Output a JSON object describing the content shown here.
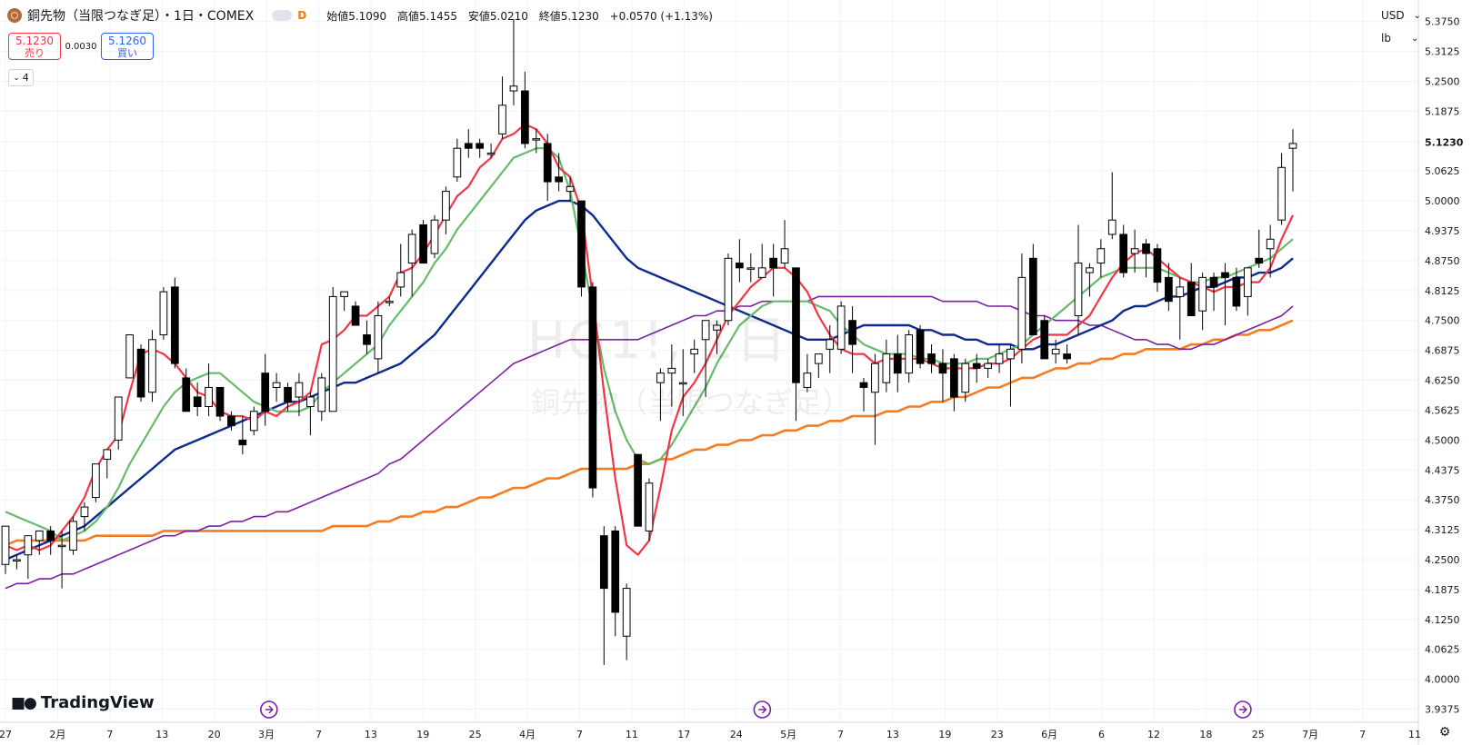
{
  "header": {
    "symbol_title": "銅先物（当限つなぎ足）・1日・COMEX",
    "interval_badge": "D",
    "ohlc": {
      "open_label": "始値",
      "open": "5.1090",
      "high_label": "高値",
      "high": "5.1455",
      "low_label": "安値",
      "low": "5.0210",
      "close_label": "終値",
      "close": "5.1230",
      "change": "+0.0570 (+1.13%)"
    }
  },
  "trade": {
    "sell_price": "5.1230",
    "sell_label": "売り",
    "spread": "0.0030",
    "buy_price": "5.1260",
    "buy_label": "買い"
  },
  "indicators_count": "4",
  "axis_controls": {
    "currency": "USD",
    "unit": "lb"
  },
  "watermark": {
    "symbol": "HG1!, 1日",
    "name": "銅先物（当限つなぎ足）"
  },
  "branding": "TradingView",
  "colors": {
    "up_fill": "#ffffff",
    "down_fill": "#000000",
    "ma5": "#f23645",
    "ma10": "#66bb6a",
    "ma25": "#0d2a8c",
    "ma50": "#7b1fa2",
    "ma100": "#f57c20",
    "grid": "#f0f3fa",
    "price_badge": "#131722"
  },
  "chart_data": {
    "type": "candlestick",
    "y_ticks": [
      "5.3750",
      "5.3125",
      "5.2500",
      "5.1875",
      "5.1230",
      "5.0625",
      "5.0000",
      "4.9375",
      "4.8750",
      "4.8125",
      "4.7500",
      "4.6875",
      "4.6250",
      "4.5625",
      "4.5000",
      "4.4375",
      "4.3750",
      "4.3125",
      "4.2500",
      "4.1875",
      "4.1250",
      "4.0625",
      "4.0000",
      "3.9375"
    ],
    "ylim": [
      3.91,
      5.42
    ],
    "current_price": "5.1230",
    "x_ticks": [
      "27",
      "2月",
      "7",
      "13",
      "20",
      "3月",
      "7",
      "13",
      "19",
      "25",
      "4月",
      "7",
      "11",
      "17",
      "24",
      "5月",
      "7",
      "13",
      "19",
      "23",
      "6月",
      "6",
      "12",
      "18",
      "25",
      "7月",
      "7",
      "11"
    ],
    "candles": [
      [
        4.24,
        4.32,
        4.22,
        4.32
      ],
      [
        4.25,
        4.26,
        4.23,
        4.25
      ],
      [
        4.26,
        4.3,
        4.21,
        4.3
      ],
      [
        4.29,
        4.31,
        4.26,
        4.31
      ],
      [
        4.31,
        4.32,
        4.26,
        4.29
      ],
      [
        4.28,
        4.31,
        4.19,
        4.28
      ],
      [
        4.27,
        4.34,
        4.26,
        4.33
      ],
      [
        4.34,
        4.37,
        4.31,
        4.36
      ],
      [
        4.38,
        4.45,
        4.37,
        4.45
      ],
      [
        4.46,
        4.48,
        4.42,
        4.48
      ],
      [
        4.5,
        4.59,
        4.48,
        4.59
      ],
      [
        4.63,
        4.72,
        4.63,
        4.72
      ],
      [
        4.69,
        4.7,
        4.58,
        4.59
      ],
      [
        4.6,
        4.73,
        4.58,
        4.71
      ],
      [
        4.72,
        4.82,
        4.71,
        4.81
      ],
      [
        4.82,
        4.84,
        4.65,
        4.66
      ],
      [
        4.63,
        4.65,
        4.56,
        4.56
      ],
      [
        4.59,
        4.62,
        4.55,
        4.57
      ],
      [
        4.57,
        4.66,
        4.55,
        4.61
      ],
      [
        4.61,
        4.61,
        4.54,
        4.55
      ],
      [
        4.55,
        4.56,
        4.52,
        4.53
      ],
      [
        4.5,
        4.55,
        4.47,
        4.49
      ],
      [
        4.52,
        4.57,
        4.51,
        4.56
      ],
      [
        4.64,
        4.68,
        4.53,
        4.56
      ],
      [
        4.61,
        4.64,
        4.58,
        4.62
      ],
      [
        4.61,
        4.62,
        4.56,
        4.58
      ],
      [
        4.59,
        4.64,
        4.55,
        4.62
      ],
      [
        4.57,
        4.6,
        4.51,
        4.59
      ],
      [
        4.56,
        4.64,
        4.54,
        4.63
      ],
      [
        4.56,
        4.82,
        4.56,
        4.8
      ],
      [
        4.8,
        4.81,
        4.77,
        4.81
      ],
      [
        4.78,
        4.79,
        4.74,
        4.74
      ],
      [
        4.72,
        4.75,
        4.68,
        4.7
      ],
      [
        4.67,
        4.79,
        4.64,
        4.76
      ],
      [
        4.79,
        4.8,
        4.78,
        4.79
      ],
      [
        4.82,
        4.91,
        4.8,
        4.85
      ],
      [
        4.87,
        4.94,
        4.8,
        4.93
      ],
      [
        4.95,
        4.96,
        4.87,
        4.87
      ],
      [
        4.89,
        4.97,
        4.88,
        4.96
      ],
      [
        4.96,
        5.03,
        4.93,
        5.02
      ],
      [
        5.05,
        5.13,
        5.04,
        5.11
      ],
      [
        5.12,
        5.15,
        5.09,
        5.11
      ],
      [
        5.12,
        5.13,
        5.09,
        5.11
      ],
      [
        5.1,
        5.12,
        5.09,
        5.1
      ],
      [
        5.14,
        5.26,
        5.13,
        5.2
      ],
      [
        5.23,
        5.38,
        5.2,
        5.24
      ],
      [
        5.23,
        5.27,
        5.11,
        5.12
      ],
      [
        5.13,
        5.15,
        5.1,
        5.13
      ],
      [
        5.12,
        5.14,
        5.0,
        5.04
      ],
      [
        5.05,
        5.1,
        5.02,
        5.04
      ],
      [
        5.02,
        5.05,
        5.0,
        5.03
      ],
      [
        5.0,
        5.0,
        4.8,
        4.82
      ],
      [
        4.82,
        4.83,
        4.38,
        4.4
      ],
      [
        4.3,
        4.32,
        4.03,
        4.19
      ],
      [
        4.31,
        4.32,
        4.09,
        4.14
      ],
      [
        4.09,
        4.2,
        4.04,
        4.19
      ],
      [
        4.47,
        4.47,
        4.33,
        4.32
      ],
      [
        4.31,
        4.42,
        4.29,
        4.41
      ],
      [
        4.62,
        4.65,
        4.54,
        4.64
      ],
      [
        4.64,
        4.7,
        4.57,
        4.65
      ],
      [
        4.62,
        4.69,
        4.55,
        4.62
      ],
      [
        4.68,
        4.71,
        4.64,
        4.69
      ],
      [
        4.71,
        4.75,
        4.59,
        4.75
      ],
      [
        4.73,
        4.75,
        4.68,
        4.74
      ],
      [
        4.75,
        4.89,
        4.74,
        4.88
      ],
      [
        4.87,
        4.92,
        4.83,
        4.86
      ],
      [
        4.86,
        4.89,
        4.83,
        4.86
      ],
      [
        4.84,
        4.91,
        4.84,
        4.86
      ],
      [
        4.88,
        4.91,
        4.8,
        4.86
      ],
      [
        4.87,
        4.96,
        4.86,
        4.9
      ],
      [
        4.86,
        4.86,
        4.54,
        4.62
      ],
      [
        4.61,
        4.68,
        4.6,
        4.64
      ],
      [
        4.66,
        4.68,
        4.63,
        4.68
      ],
      [
        4.69,
        4.74,
        4.64,
        4.71
      ],
      [
        4.69,
        4.79,
        4.68,
        4.78
      ],
      [
        4.75,
        4.78,
        4.64,
        4.7
      ],
      [
        4.62,
        4.63,
        4.56,
        4.61
      ],
      [
        4.6,
        4.68,
        4.49,
        4.66
      ],
      [
        4.62,
        4.71,
        4.6,
        4.68
      ],
      [
        4.68,
        4.72,
        4.6,
        4.64
      ],
      [
        4.64,
        4.73,
        4.62,
        4.72
      ],
      [
        4.73,
        4.74,
        4.65,
        4.66
      ],
      [
        4.68,
        4.7,
        4.64,
        4.66
      ],
      [
        4.66,
        4.69,
        4.58,
        4.64
      ],
      [
        4.67,
        4.68,
        4.56,
        4.59
      ],
      [
        4.6,
        4.67,
        4.58,
        4.66
      ],
      [
        4.66,
        4.68,
        4.62,
        4.65
      ],
      [
        4.65,
        4.67,
        4.63,
        4.66
      ],
      [
        4.66,
        4.7,
        4.64,
        4.68
      ],
      [
        4.67,
        4.7,
        4.57,
        4.69
      ],
      [
        4.69,
        4.89,
        4.66,
        4.84
      ],
      [
        4.88,
        4.91,
        4.72,
        4.72
      ],
      [
        4.75,
        4.76,
        4.67,
        4.67
      ],
      [
        4.68,
        4.71,
        4.66,
        4.69
      ],
      [
        4.68,
        4.7,
        4.66,
        4.67
      ],
      [
        4.76,
        4.95,
        4.72,
        4.87
      ],
      [
        4.85,
        4.87,
        4.8,
        4.86
      ],
      [
        4.87,
        4.92,
        4.84,
        4.9
      ],
      [
        4.93,
        5.06,
        4.92,
        4.96
      ],
      [
        4.93,
        4.95,
        4.84,
        4.85
      ],
      [
        4.89,
        4.94,
        4.85,
        4.9
      ],
      [
        4.91,
        4.92,
        4.84,
        4.89
      ],
      [
        4.9,
        4.91,
        4.81,
        4.83
      ],
      [
        4.84,
        4.87,
        4.77,
        4.79
      ],
      [
        4.8,
        4.84,
        4.71,
        4.82
      ],
      [
        4.83,
        4.87,
        4.76,
        4.76
      ],
      [
        4.77,
        4.85,
        4.73,
        4.84
      ],
      [
        4.84,
        4.85,
        4.77,
        4.82
      ],
      [
        4.85,
        4.87,
        4.74,
        4.84
      ],
      [
        4.84,
        4.86,
        4.77,
        4.78
      ],
      [
        4.8,
        4.86,
        4.76,
        4.86
      ],
      [
        4.88,
        4.94,
        4.86,
        4.87
      ],
      [
        4.9,
        4.95,
        4.84,
        4.92
      ],
      [
        4.96,
        5.1,
        4.95,
        5.07
      ],
      [
        5.11,
        5.15,
        5.02,
        5.12
      ]
    ],
    "series": [
      {
        "name": "MA5",
        "values": [
          4.28,
          4.27,
          4.28,
          4.27,
          4.28,
          4.31,
          4.34,
          4.38,
          4.44,
          4.48,
          4.51,
          4.6,
          4.68,
          4.69,
          4.68,
          4.66,
          4.63,
          4.6,
          4.59,
          4.56,
          4.55,
          4.55,
          4.54,
          4.56,
          4.55,
          4.57,
          4.58,
          4.6,
          4.7,
          4.71,
          4.73,
          4.76,
          4.76,
          4.78,
          4.8,
          4.85,
          4.86,
          4.89,
          4.93,
          4.97,
          5.01,
          5.03,
          5.07,
          5.09,
          5.13,
          5.14,
          5.16,
          5.15,
          5.12,
          5.07,
          5.05,
          4.98,
          4.8,
          4.6,
          4.42,
          4.28,
          4.26,
          4.29,
          4.4,
          4.52,
          4.59,
          4.62,
          4.66,
          4.71,
          4.76,
          4.79,
          4.82,
          4.84,
          4.86,
          4.86,
          4.84,
          4.81,
          4.76,
          4.72,
          4.69,
          4.68,
          4.68,
          4.66,
          4.67,
          4.67,
          4.67,
          4.67,
          4.66,
          4.65,
          4.65,
          4.65,
          4.65,
          4.66,
          4.66,
          4.67,
          4.69,
          4.71,
          4.72,
          4.72,
          4.72,
          4.74,
          4.76,
          4.8,
          4.84,
          4.87,
          4.89,
          4.9,
          4.88,
          4.86,
          4.84,
          4.83,
          4.82,
          4.81,
          4.82,
          4.82,
          4.83,
          4.83,
          4.86,
          4.92,
          4.97
        ]
      },
      {
        "name": "MA10",
        "values": [
          4.35,
          4.34,
          4.33,
          4.32,
          4.31,
          4.29,
          4.3,
          4.31,
          4.33,
          4.36,
          4.4,
          4.45,
          4.49,
          4.53,
          4.57,
          4.6,
          4.62,
          4.63,
          4.64,
          4.64,
          4.62,
          4.6,
          4.58,
          4.57,
          4.56,
          4.56,
          4.56,
          4.57,
          4.6,
          4.62,
          4.64,
          4.66,
          4.68,
          4.7,
          4.74,
          4.77,
          4.8,
          4.83,
          4.87,
          4.9,
          4.94,
          4.97,
          5.0,
          5.03,
          5.06,
          5.09,
          5.1,
          5.11,
          5.11,
          5.09,
          5.02,
          4.9,
          4.77,
          4.65,
          4.56,
          4.5,
          4.46,
          4.45,
          4.46,
          4.49,
          4.53,
          4.57,
          4.61,
          4.66,
          4.7,
          4.74,
          4.76,
          4.78,
          4.79,
          4.79,
          4.79,
          4.79,
          4.78,
          4.77,
          4.74,
          4.72,
          4.7,
          4.69,
          4.68,
          4.68,
          4.68,
          4.67,
          4.67,
          4.66,
          4.66,
          4.66,
          4.67,
          4.67,
          4.68,
          4.69,
          4.7,
          4.72,
          4.74,
          4.76,
          4.78,
          4.8,
          4.82,
          4.84,
          4.85,
          4.86,
          4.86,
          4.86,
          4.86,
          4.85,
          4.84,
          4.83,
          4.83,
          4.84,
          4.84,
          4.85,
          4.86,
          4.87,
          4.88,
          4.9,
          4.92
        ]
      },
      {
        "name": "MA25",
        "values": [
          4.25,
          4.26,
          4.27,
          4.28,
          4.29,
          4.3,
          4.31,
          4.32,
          4.34,
          4.36,
          4.38,
          4.4,
          4.42,
          4.44,
          4.46,
          4.48,
          4.49,
          4.5,
          4.51,
          4.52,
          4.53,
          4.54,
          4.55,
          4.56,
          4.57,
          4.58,
          4.58,
          4.59,
          4.6,
          4.61,
          4.62,
          4.62,
          4.63,
          4.64,
          4.65,
          4.66,
          4.68,
          4.7,
          4.72,
          4.75,
          4.78,
          4.81,
          4.84,
          4.87,
          4.9,
          4.93,
          4.96,
          4.98,
          4.99,
          5.0,
          5.0,
          4.99,
          4.97,
          4.94,
          4.91,
          4.88,
          4.86,
          4.85,
          4.84,
          4.83,
          4.82,
          4.81,
          4.8,
          4.79,
          4.78,
          4.77,
          4.76,
          4.75,
          4.74,
          4.73,
          4.72,
          4.71,
          4.71,
          4.71,
          4.72,
          4.73,
          4.74,
          4.74,
          4.74,
          4.74,
          4.74,
          4.73,
          4.73,
          4.72,
          4.72,
          4.71,
          4.71,
          4.7,
          4.7,
          4.7,
          4.69,
          4.69,
          4.7,
          4.7,
          4.71,
          4.72,
          4.73,
          4.74,
          4.75,
          4.77,
          4.78,
          4.78,
          4.79,
          4.8,
          4.8,
          4.81,
          4.82,
          4.82,
          4.83,
          4.84,
          4.84,
          4.85,
          4.85,
          4.86,
          4.88
        ]
      },
      {
        "name": "MA50",
        "values": [
          4.19,
          4.2,
          4.2,
          4.21,
          4.21,
          4.22,
          4.22,
          4.23,
          4.24,
          4.25,
          4.26,
          4.27,
          4.28,
          4.29,
          4.3,
          4.3,
          4.31,
          4.31,
          4.32,
          4.32,
          4.33,
          4.33,
          4.34,
          4.34,
          4.35,
          4.35,
          4.36,
          4.37,
          4.38,
          4.39,
          4.4,
          4.41,
          4.42,
          4.43,
          4.45,
          4.46,
          4.48,
          4.5,
          4.52,
          4.54,
          4.56,
          4.58,
          4.6,
          4.62,
          4.64,
          4.66,
          4.67,
          4.68,
          4.69,
          4.7,
          4.71,
          4.71,
          4.71,
          4.71,
          4.71,
          4.71,
          4.71,
          4.72,
          4.73,
          4.74,
          4.75,
          4.76,
          4.76,
          4.77,
          4.77,
          4.78,
          4.78,
          4.79,
          4.79,
          4.79,
          4.79,
          4.79,
          4.8,
          4.8,
          4.8,
          4.8,
          4.8,
          4.8,
          4.8,
          4.8,
          4.8,
          4.8,
          4.8,
          4.79,
          4.79,
          4.79,
          4.79,
          4.78,
          4.78,
          4.78,
          4.77,
          4.76,
          4.76,
          4.75,
          4.75,
          4.75,
          4.74,
          4.74,
          4.73,
          4.72,
          4.71,
          4.71,
          4.7,
          4.7,
          4.69,
          4.69,
          4.7,
          4.7,
          4.71,
          4.72,
          4.73,
          4.74,
          4.75,
          4.76,
          4.78
        ]
      },
      {
        "name": "MA100",
        "values": [
          4.28,
          4.29,
          4.29,
          4.29,
          4.29,
          4.29,
          4.29,
          4.29,
          4.3,
          4.3,
          4.3,
          4.3,
          4.3,
          4.3,
          4.31,
          4.31,
          4.31,
          4.31,
          4.31,
          4.31,
          4.31,
          4.31,
          4.31,
          4.31,
          4.31,
          4.31,
          4.31,
          4.31,
          4.31,
          4.32,
          4.32,
          4.32,
          4.32,
          4.33,
          4.33,
          4.34,
          4.34,
          4.35,
          4.35,
          4.36,
          4.36,
          4.37,
          4.38,
          4.38,
          4.39,
          4.4,
          4.4,
          4.41,
          4.42,
          4.42,
          4.43,
          4.44,
          4.44,
          4.44,
          4.44,
          4.44,
          4.45,
          4.45,
          4.46,
          4.46,
          4.47,
          4.48,
          4.48,
          4.49,
          4.49,
          4.5,
          4.5,
          4.51,
          4.51,
          4.52,
          4.52,
          4.53,
          4.53,
          4.54,
          4.54,
          4.55,
          4.55,
          4.55,
          4.56,
          4.56,
          4.57,
          4.57,
          4.58,
          4.58,
          4.59,
          4.59,
          4.6,
          4.61,
          4.61,
          4.62,
          4.63,
          4.63,
          4.64,
          4.65,
          4.65,
          4.66,
          4.66,
          4.67,
          4.67,
          4.68,
          4.68,
          4.69,
          4.69,
          4.69,
          4.69,
          4.7,
          4.7,
          4.71,
          4.71,
          4.72,
          4.72,
          4.73,
          4.73,
          4.74,
          4.75
        ]
      }
    ],
    "event_markers": [
      0.187,
      0.537,
      0.878
    ]
  }
}
